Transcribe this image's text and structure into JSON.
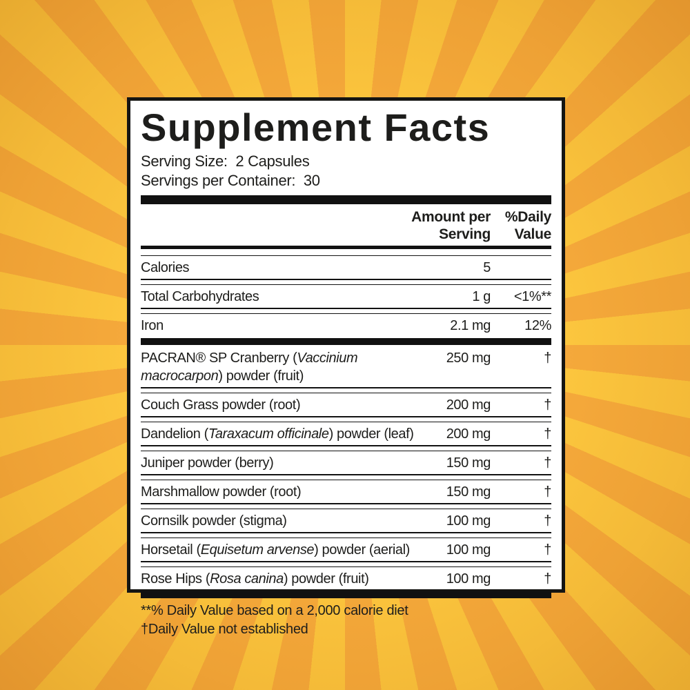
{
  "background": {
    "ray_light": "#fcc63e",
    "ray_dark": "#f5a93b"
  },
  "label": {
    "title": "Supplement Facts",
    "serving_size": "Serving Size:  2 Capsules",
    "servings_per_container": "Servings per Container:  30",
    "columns": {
      "amount": "Amount per\nServing",
      "dv": "%Daily\nValue"
    },
    "nutrients": [
      {
        "label_parts": [
          {
            "text": "Calories"
          }
        ],
        "amount": "5",
        "dv": ""
      },
      {
        "label_parts": [
          {
            "text": "Total Carbohydrates"
          }
        ],
        "amount": "1 g",
        "dv": "<1%**"
      },
      {
        "label_parts": [
          {
            "text": "Iron"
          }
        ],
        "amount": "2.1 mg",
        "dv": "12%"
      }
    ],
    "herbals": [
      {
        "label_parts": [
          {
            "text": "PACRAN® SP Cranberry ("
          },
          {
            "text": "Vaccinium macrocarpon",
            "italic": true
          },
          {
            "text": ") powder (fruit)"
          }
        ],
        "amount": "250 mg",
        "dv": "†"
      },
      {
        "label_parts": [
          {
            "text": "Couch Grass powder (root)"
          }
        ],
        "amount": "200 mg",
        "dv": "†"
      },
      {
        "label_parts": [
          {
            "text": "Dandelion ("
          },
          {
            "text": "Taraxacum officinale",
            "italic": true
          },
          {
            "text": ") powder (leaf)"
          }
        ],
        "amount": "200 mg",
        "dv": "†"
      },
      {
        "label_parts": [
          {
            "text": "Juniper powder (berry)"
          }
        ],
        "amount": "150 mg",
        "dv": "†"
      },
      {
        "label_parts": [
          {
            "text": "Marshmallow powder (root)"
          }
        ],
        "amount": "150 mg",
        "dv": "†"
      },
      {
        "label_parts": [
          {
            "text": "Cornsilk powder (stigma)"
          }
        ],
        "amount": "100 mg",
        "dv": "†"
      },
      {
        "label_parts": [
          {
            "text": "Horsetail ("
          },
          {
            "text": "Equisetum arvense",
            "italic": true
          },
          {
            "text": ") powder (aerial)"
          }
        ],
        "amount": "100 mg",
        "dv": "†"
      },
      {
        "label_parts": [
          {
            "text": "Rose Hips ("
          },
          {
            "text": "Rosa canina",
            "italic": true
          },
          {
            "text": ") powder (fruit)"
          }
        ],
        "amount": "100 mg",
        "dv": "†"
      }
    ],
    "footnotes": [
      "**% Daily Value based on a 2,000 calorie diet",
      "†Daily Value not established"
    ]
  }
}
